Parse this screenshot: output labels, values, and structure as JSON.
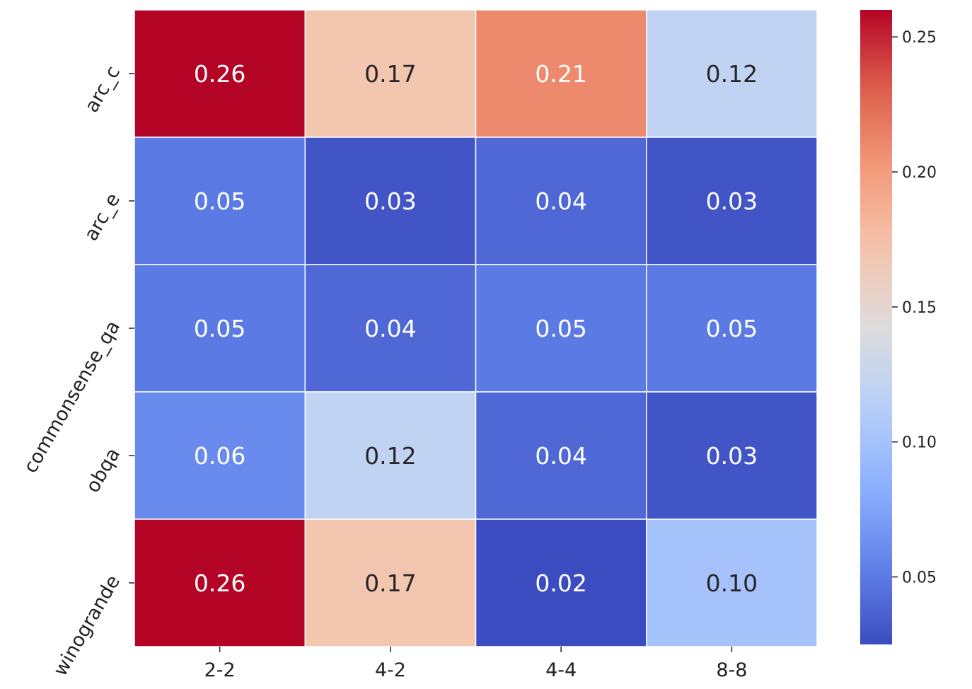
{
  "chart_data": {
    "type": "heatmap",
    "title": "",
    "xlabel": "",
    "ylabel": "",
    "x_categories": [
      "2-2",
      "4-2",
      "4-4",
      "8-8"
    ],
    "y_categories": [
      "arc_c",
      "arc_e",
      "commonsense_qa",
      "obqa",
      "winogrande"
    ],
    "values": [
      [
        0.26,
        0.17,
        0.21,
        0.12
      ],
      [
        0.05,
        0.03,
        0.04,
        0.03
      ],
      [
        0.05,
        0.04,
        0.05,
        0.05
      ],
      [
        0.06,
        0.12,
        0.04,
        0.03
      ],
      [
        0.26,
        0.17,
        0.02,
        0.1
      ]
    ],
    "value_labels": [
      [
        "0.26",
        "0.17",
        "0.21",
        "0.12"
      ],
      [
        "0.05",
        "0.03",
        "0.04",
        "0.03"
      ],
      [
        "0.05",
        "0.04",
        "0.05",
        "0.05"
      ],
      [
        "0.06",
        "0.12",
        "0.04",
        "0.03"
      ],
      [
        "0.26",
        "0.17",
        "0.02",
        "0.10"
      ]
    ],
    "colormap": "coolwarm",
    "colorbar": {
      "range": [
        0.025,
        0.26
      ],
      "ticks": [
        0.05,
        0.1,
        0.15,
        0.2,
        0.25
      ],
      "tick_labels": [
        "0.05",
        "0.10",
        "0.15",
        "0.20",
        "0.25"
      ]
    },
    "colors": {
      "low": "#3b4cc0",
      "mid": "#dddcdc",
      "high": "#b40426",
      "grid_line": "#ffffff",
      "dark_text": "#262626",
      "light_text": "#ffffff"
    }
  }
}
